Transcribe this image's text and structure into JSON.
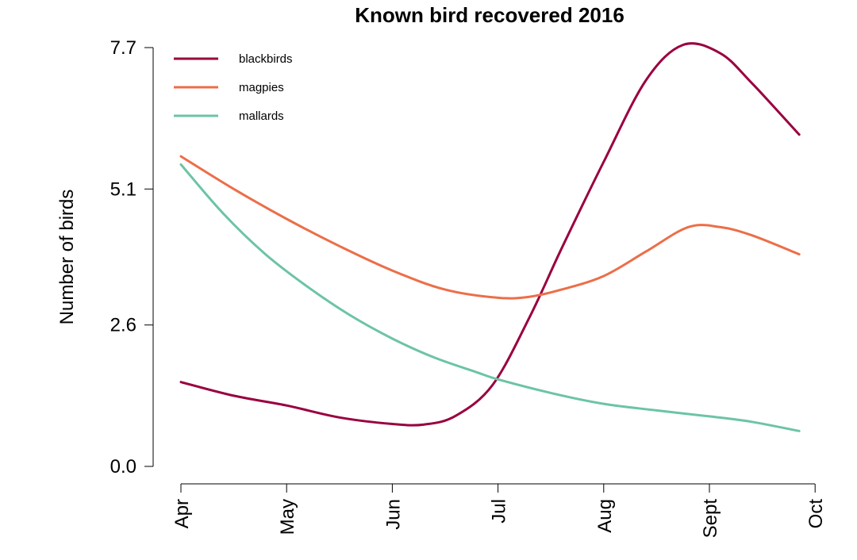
{
  "chart_data": {
    "type": "line",
    "title": "Known bird recovered 2016",
    "xlabel": "",
    "ylabel": "Number of birds",
    "categories": [
      "Apr",
      "May",
      "Jun",
      "Jul",
      "Aug",
      "Sept",
      "Oct"
    ],
    "yticks": [
      "0.0",
      "2.6",
      "5.1",
      "7.7"
    ],
    "ylim": [
      0,
      7.7
    ],
    "grid": false,
    "legend_position": "top-left",
    "series": [
      {
        "name": "blackbirds",
        "color": "#99003f",
        "x": [
          0,
          0.5,
          1,
          1.5,
          2,
          2.3,
          2.6,
          2.95,
          3.3,
          3.6,
          4.0,
          4.4,
          4.75,
          5.1,
          5.4,
          5.85
        ],
        "y": [
          1.55,
          1.3,
          1.12,
          0.9,
          0.78,
          0.77,
          0.93,
          1.5,
          2.75,
          4.0,
          5.6,
          7.1,
          7.75,
          7.6,
          7.05,
          6.1
        ]
      },
      {
        "name": "magpies",
        "color": "#ec6e48",
        "x": [
          0,
          0.5,
          1,
          1.5,
          2,
          2.5,
          3.0,
          3.3,
          3.6,
          4.0,
          4.4,
          4.8,
          5.1,
          5.4,
          5.85
        ],
        "y": [
          5.7,
          5.1,
          4.55,
          4.05,
          3.6,
          3.25,
          3.1,
          3.12,
          3.25,
          3.5,
          3.95,
          4.4,
          4.4,
          4.25,
          3.9
        ]
      },
      {
        "name": "mallards",
        "color": "#6cc4a4",
        "x": [
          0,
          0.4,
          0.8,
          1.2,
          1.6,
          2.0,
          2.4,
          2.8,
          3.0,
          3.5,
          4.0,
          4.5,
          5.0,
          5.4,
          5.85
        ],
        "y": [
          5.55,
          4.65,
          3.9,
          3.3,
          2.78,
          2.35,
          2.0,
          1.73,
          1.6,
          1.35,
          1.15,
          1.03,
          0.92,
          0.82,
          0.65
        ]
      }
    ]
  }
}
